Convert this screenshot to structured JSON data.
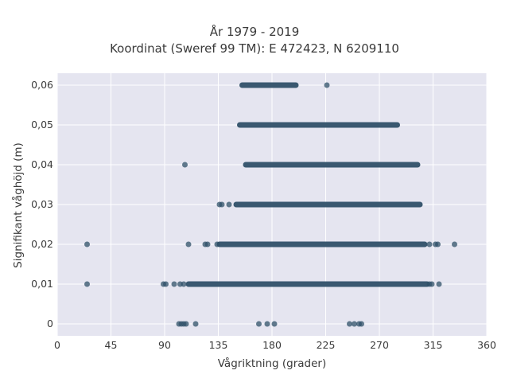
{
  "chart_data": {
    "type": "scatter",
    "title": "År 1979 - 2019",
    "subtitle": "Koordinat (Sweref 99 TM): E 472423, N 6209110",
    "xlabel": "Vågriktning (grader)",
    "ylabel": "Signifikant våghöjd (m)",
    "xlim": [
      0,
      360
    ],
    "ylim": [
      -0.003,
      0.063
    ],
    "x_ticks": [
      0,
      45,
      90,
      135,
      180,
      225,
      270,
      315,
      360
    ],
    "x_tick_labels": [
      "0",
      "45",
      "90",
      "135",
      "180",
      "225",
      "270",
      "315",
      "360"
    ],
    "y_ticks": [
      0,
      0.01,
      0.02,
      0.03,
      0.04,
      0.05,
      0.06
    ],
    "y_tick_labels": [
      "0",
      "0,01",
      "0,02",
      "0,03",
      "0,04",
      "0,05",
      "0,06"
    ],
    "grid": true,
    "marker_color": "#2f5068",
    "bands": [
      {
        "y": 0.06,
        "x_start": 155,
        "x_end": 200
      },
      {
        "y": 0.05,
        "x_start": 153,
        "x_end": 285
      },
      {
        "y": 0.04,
        "x_start": 158,
        "x_end": 302
      },
      {
        "y": 0.03,
        "x_start": 150,
        "x_end": 304
      },
      {
        "y": 0.02,
        "x_start": 136,
        "x_end": 308
      },
      {
        "y": 0.01,
        "x_start": 110,
        "x_end": 310
      }
    ],
    "points": [
      {
        "x": 226,
        "y": 0.06
      },
      {
        "x": 107,
        "y": 0.04
      },
      {
        "x": 136,
        "y": 0.03
      },
      {
        "x": 138,
        "y": 0.03
      },
      {
        "x": 144,
        "y": 0.03
      },
      {
        "x": 25,
        "y": 0.02
      },
      {
        "x": 110,
        "y": 0.02
      },
      {
        "x": 124,
        "y": 0.02
      },
      {
        "x": 126,
        "y": 0.02
      },
      {
        "x": 134,
        "y": 0.02
      },
      {
        "x": 312,
        "y": 0.02
      },
      {
        "x": 317,
        "y": 0.02
      },
      {
        "x": 319,
        "y": 0.02
      },
      {
        "x": 333,
        "y": 0.02
      },
      {
        "x": 25,
        "y": 0.01
      },
      {
        "x": 89,
        "y": 0.01
      },
      {
        "x": 91,
        "y": 0.01
      },
      {
        "x": 98,
        "y": 0.01
      },
      {
        "x": 103,
        "y": 0.01
      },
      {
        "x": 106,
        "y": 0.01
      },
      {
        "x": 312,
        "y": 0.01
      },
      {
        "x": 314,
        "y": 0.01
      },
      {
        "x": 320,
        "y": 0.01
      },
      {
        "x": 102,
        "y": 0
      },
      {
        "x": 104,
        "y": 0
      },
      {
        "x": 106,
        "y": 0
      },
      {
        "x": 108,
        "y": 0
      },
      {
        "x": 116,
        "y": 0
      },
      {
        "x": 169,
        "y": 0
      },
      {
        "x": 176,
        "y": 0
      },
      {
        "x": 182,
        "y": 0
      },
      {
        "x": 245,
        "y": 0
      },
      {
        "x": 249,
        "y": 0
      },
      {
        "x": 253,
        "y": 0
      },
      {
        "x": 255,
        "y": 0
      }
    ]
  }
}
